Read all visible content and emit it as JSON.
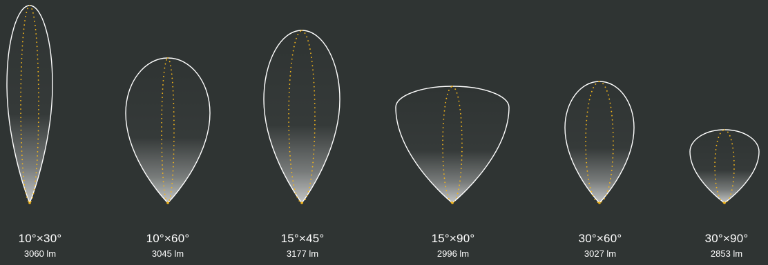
{
  "colors": {
    "background": "#2f3433",
    "outline": "#ffffff",
    "inner_dotted": "#f3b51b"
  },
  "beams": [
    {
      "angle": "10°×30°",
      "lumen": "3060 lm"
    },
    {
      "angle": "10°×60°",
      "lumen": "3045 lm"
    },
    {
      "angle": "15°×45°",
      "lumen": "3177 lm"
    },
    {
      "angle": "15°×90°",
      "lumen": "2996 lm"
    },
    {
      "angle": "30°×60°",
      "lumen": "3027 lm"
    },
    {
      "angle": "30°×90°",
      "lumen": "2853 lm"
    }
  ]
}
